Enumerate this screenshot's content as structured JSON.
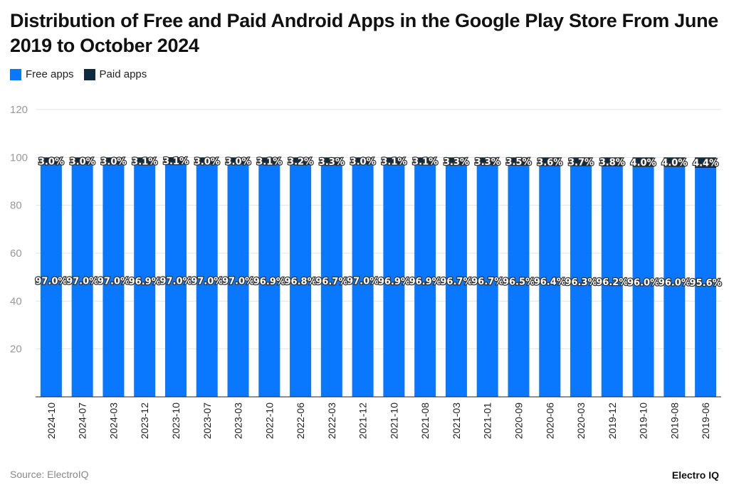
{
  "chart_data": {
    "type": "bar",
    "stacked": true,
    "title": "Distribution of Free and Paid Android Apps in the Google Play Store From June 2019 to October 2024",
    "categories": [
      "2024-10",
      "2024-07",
      "2024-03",
      "2023-12",
      "2023-10",
      "2023-07",
      "2023-03",
      "2022-10",
      "2022-06",
      "2022-03",
      "2021-12",
      "2021-10",
      "2021-08",
      "2021-03",
      "2021-01",
      "2020-09",
      "2020-06",
      "2020-03",
      "2019-12",
      "2019-10",
      "2019-08",
      "2019-06"
    ],
    "series": [
      {
        "name": "Free apps",
        "color": "#0a77ff",
        "values": [
          97.0,
          97.0,
          97.0,
          96.9,
          97.0,
          97.0,
          97.0,
          96.9,
          96.8,
          96.7,
          97.0,
          96.9,
          96.9,
          96.7,
          96.7,
          96.5,
          96.4,
          96.3,
          96.2,
          96.0,
          96.0,
          95.6
        ]
      },
      {
        "name": "Paid apps",
        "color": "#0d2a3e",
        "values": [
          3.0,
          3.0,
          3.0,
          3.1,
          3.1,
          3.0,
          3.0,
          3.1,
          3.2,
          3.3,
          3.0,
          3.1,
          3.1,
          3.3,
          3.3,
          3.5,
          3.6,
          3.7,
          3.8,
          4.0,
          4.0,
          4.4
        ]
      }
    ],
    "ylim": [
      0,
      120
    ],
    "yticks": [
      20,
      40,
      60,
      80,
      100,
      120
    ],
    "grid": true,
    "legend": "top-left",
    "xlabel": "",
    "ylabel": ""
  },
  "footer": {
    "source": "Source: ElectroIQ",
    "brand": "Electro IQ"
  }
}
